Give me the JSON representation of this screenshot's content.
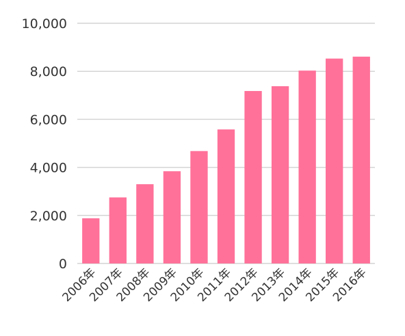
{
  "chart_data": {
    "type": "bar",
    "categories": [
      "2006年",
      "2007年",
      "2008年",
      "2009年",
      "2010年",
      "2011年",
      "2012年",
      "2013年",
      "2014年",
      "2015年",
      "2016年"
    ],
    "values": [
      1880,
      2750,
      3300,
      3840,
      4680,
      5580,
      7180,
      7380,
      8030,
      8530,
      8610
    ],
    "ylim": [
      0,
      10000
    ],
    "yticks": [
      0,
      2000,
      4000,
      6000,
      8000,
      10000
    ],
    "ytick_labels": [
      "0",
      "2,000",
      "4,000",
      "6,000",
      "8,000",
      "10,000"
    ],
    "title": "",
    "xlabel": "",
    "ylabel": "",
    "grid": true,
    "bar_color": "#ff7199",
    "grid_color": "#d4d4d4"
  }
}
